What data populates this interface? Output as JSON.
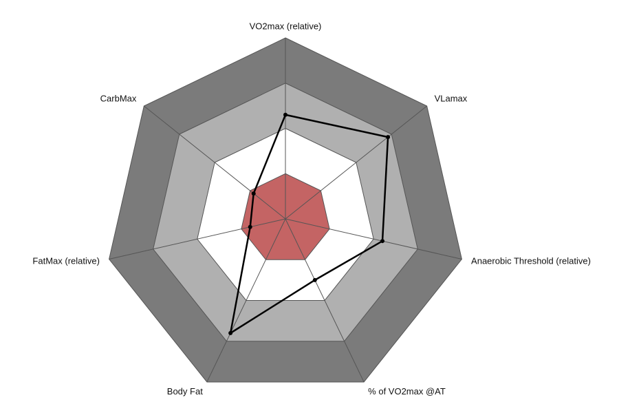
{
  "chart_data": {
    "type": "radar",
    "categories": [
      "VO2max (relative)",
      "VLamax",
      "Anaerobic Threshold (relative)",
      "% of VO2max @AT",
      "Body Fat",
      "FatMax (relative)",
      "CarbMax"
    ],
    "series": [
      {
        "color": "#000000",
        "values": [
          2.3,
          2.9,
          2.2,
          1.5,
          2.8,
          0.8,
          0.9
        ]
      }
    ],
    "rlim": [
      0,
      4
    ],
    "rticks": [
      1,
      2,
      3,
      4
    ],
    "band_colors": [
      "#c46464",
      "#ffffff",
      "#b0b0b0",
      "#7b7b7b"
    ]
  }
}
